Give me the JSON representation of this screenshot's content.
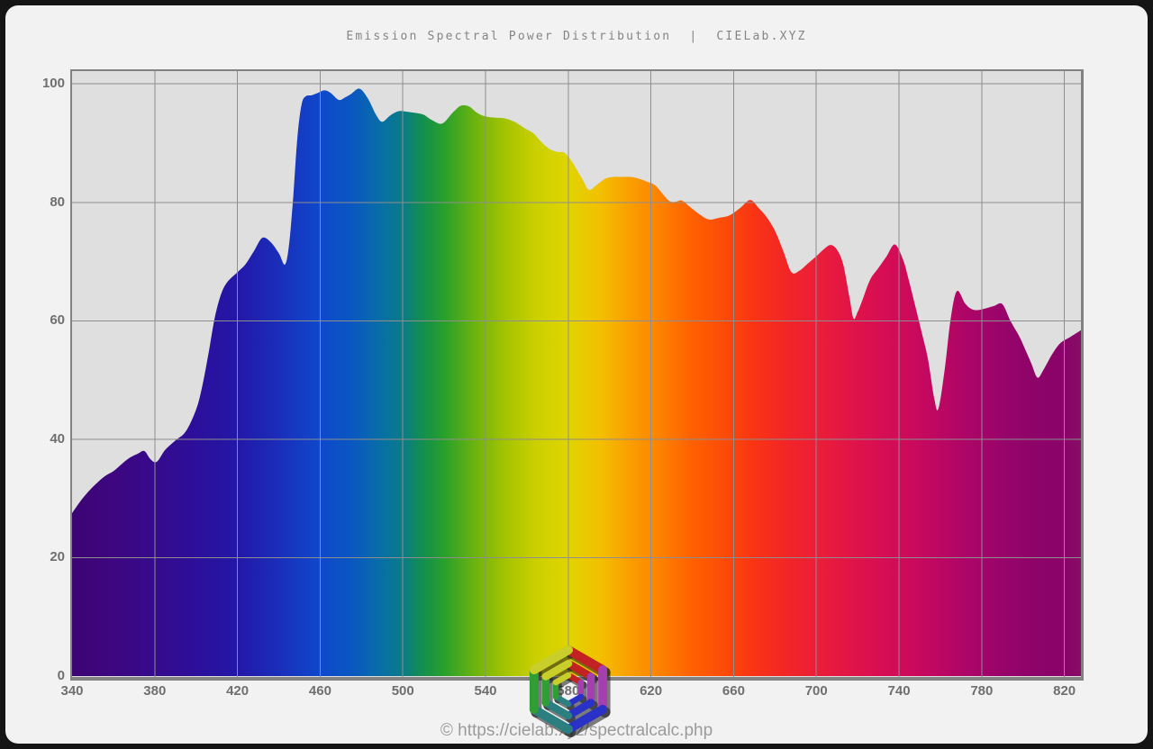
{
  "header": {
    "title": "Emission Spectral Power Distribution  |  CIELab.XYZ",
    "color": "#858585"
  },
  "footer": {
    "text": "© https://cielab.xyz/spectralcalc.php",
    "color": "#9b9b9b"
  },
  "logo": {
    "name": "cielab-hexagon-spiral-logo",
    "ring_radii": [
      44,
      29,
      16
    ],
    "ring_widths": [
      10,
      8.5,
      6.5
    ],
    "edge_colors": [
      "#c32222",
      "#a43fb0",
      "#2a31c6",
      "#2b7f80",
      "#2f9e35",
      "#c9cf2a"
    ],
    "shadow_color": "rgba(25,25,25,0.55)"
  },
  "chart_data": {
    "type": "area",
    "title": "Emission Spectral Power Distribution  |  CIELab.XYZ",
    "xlabel": "",
    "ylabel": "",
    "xlim": [
      340,
      828
    ],
    "ylim": [
      0,
      102.3
    ],
    "x_ticks": [
      340,
      380,
      420,
      460,
      500,
      540,
      580,
      620,
      660,
      700,
      740,
      780,
      820
    ],
    "y_ticks": [
      0,
      20,
      40,
      60,
      80,
      100
    ],
    "grid": true,
    "plot_bg": "#dfdfdf",
    "grid_color": "#8e8e8e",
    "border_color": "#828282",
    "tick_color": "#6f6f6f",
    "points": [
      [
        340,
        27.5
      ],
      [
        344,
        29.5
      ],
      [
        348,
        31.2
      ],
      [
        352,
        32.6
      ],
      [
        356,
        33.8
      ],
      [
        360,
        34.6
      ],
      [
        364,
        35.8
      ],
      [
        368,
        36.9
      ],
      [
        372,
        37.6
      ],
      [
        375,
        38
      ],
      [
        378,
        36.6
      ],
      [
        381,
        36.2
      ],
      [
        385,
        38.2
      ],
      [
        390,
        39.8
      ],
      [
        395,
        41.3
      ],
      [
        400,
        45
      ],
      [
        403,
        49
      ],
      [
        406,
        54.5
      ],
      [
        409,
        60.5
      ],
      [
        412,
        64.4
      ],
      [
        415,
        66.5
      ],
      [
        420,
        68.2
      ],
      [
        424,
        69.6
      ],
      [
        428,
        71.8
      ],
      [
        432,
        74
      ],
      [
        436,
        73.3
      ],
      [
        440,
        71.4
      ],
      [
        443,
        69.5
      ],
      [
        445,
        73
      ],
      [
        447,
        81
      ],
      [
        449,
        91
      ],
      [
        451,
        96.5
      ],
      [
        453,
        97.9
      ],
      [
        456,
        98.1
      ],
      [
        459,
        98.5
      ],
      [
        462,
        98.9
      ],
      [
        465,
        98.5
      ],
      [
        469,
        97.3
      ],
      [
        472,
        97.7
      ],
      [
        475,
        98.3
      ],
      [
        479,
        99.2
      ],
      [
        483,
        97.6
      ],
      [
        487,
        94.8
      ],
      [
        490,
        93.6
      ],
      [
        494,
        94.7
      ],
      [
        498,
        95.4
      ],
      [
        502,
        95.3
      ],
      [
        506,
        95.1
      ],
      [
        510,
        94.8
      ],
      [
        514,
        93.9
      ],
      [
        519,
        93.3
      ],
      [
        524,
        95.1
      ],
      [
        528,
        96.3
      ],
      [
        532,
        96.2
      ],
      [
        536,
        95.1
      ],
      [
        540,
        94.5
      ],
      [
        545,
        94.3
      ],
      [
        549,
        94.2
      ],
      [
        554,
        93.6
      ],
      [
        559,
        92.5
      ],
      [
        563,
        91.7
      ],
      [
        567,
        90.2
      ],
      [
        571,
        89
      ],
      [
        575,
        88.5
      ],
      [
        578,
        88.4
      ],
      [
        581,
        87.3
      ],
      [
        584,
        85.6
      ],
      [
        587,
        83.8
      ],
      [
        590,
        82.1
      ],
      [
        594,
        83
      ],
      [
        598,
        84
      ],
      [
        602,
        84.3
      ],
      [
        606,
        84.3
      ],
      [
        610,
        84.3
      ],
      [
        614,
        84
      ],
      [
        618,
        83.5
      ],
      [
        622,
        82.9
      ],
      [
        626,
        81.3
      ],
      [
        629,
        80.2
      ],
      [
        632,
        80.1
      ],
      [
        635,
        80.3
      ],
      [
        639,
        79.2
      ],
      [
        643,
        78.1
      ],
      [
        648,
        77.1
      ],
      [
        653,
        77.4
      ],
      [
        658,
        77.8
      ],
      [
        663,
        79
      ],
      [
        668,
        80.4
      ],
      [
        672,
        79.1
      ],
      [
        676,
        77.5
      ],
      [
        680,
        75.2
      ],
      [
        684,
        71.8
      ],
      [
        688,
        68.2
      ],
      [
        692,
        68.5
      ],
      [
        696,
        69.7
      ],
      [
        700,
        70.9
      ],
      [
        704,
        72.2
      ],
      [
        707,
        72.8
      ],
      [
        710,
        72
      ],
      [
        713,
        69.5
      ],
      [
        716,
        64
      ],
      [
        718,
        60.4
      ],
      [
        720,
        61.5
      ],
      [
        722,
        63.2
      ],
      [
        726,
        66.9
      ],
      [
        730,
        68.9
      ],
      [
        734,
        70.9
      ],
      [
        738,
        72.9
      ],
      [
        742,
        70.3
      ],
      [
        745,
        66.5
      ],
      [
        748,
        62.3
      ],
      [
        751,
        58
      ],
      [
        754,
        53.5
      ],
      [
        757,
        47
      ],
      [
        759,
        45.1
      ],
      [
        762,
        51.5
      ],
      [
        765,
        60.3
      ],
      [
        768,
        65
      ],
      [
        772,
        62.9
      ],
      [
        775,
        62
      ],
      [
        778,
        61.8
      ],
      [
        782,
        62.1
      ],
      [
        786,
        62.5
      ],
      [
        790,
        62.8
      ],
      [
        794,
        59.9
      ],
      [
        798,
        57.5
      ],
      [
        801,
        55.2
      ],
      [
        804,
        52.8
      ],
      [
        807,
        50.4
      ],
      [
        810,
        51.8
      ],
      [
        814,
        54.3
      ],
      [
        818,
        56.2
      ],
      [
        823,
        57.3
      ],
      [
        828,
        58.4
      ]
    ],
    "spectrum_gradient": [
      [
        340,
        "#3d0474"
      ],
      [
        360,
        "#3e0680"
      ],
      [
        380,
        "#360a8c"
      ],
      [
        400,
        "#2c0f9a"
      ],
      [
        420,
        "#2317a8"
      ],
      [
        440,
        "#1a2eba"
      ],
      [
        460,
        "#0f48cc"
      ],
      [
        475,
        "#0a56c2"
      ],
      [
        490,
        "#0870a4"
      ],
      [
        500,
        "#0a7b87"
      ],
      [
        510,
        "#14904c"
      ],
      [
        520,
        "#28a02a"
      ],
      [
        535,
        "#6cb40e"
      ],
      [
        550,
        "#a6c400"
      ],
      [
        565,
        "#ccd000"
      ],
      [
        580,
        "#e0d400"
      ],
      [
        595,
        "#f2c000"
      ],
      [
        610,
        "#fa9e00"
      ],
      [
        625,
        "#fd8000"
      ],
      [
        640,
        "#fe6000"
      ],
      [
        655,
        "#fc4c08"
      ],
      [
        670,
        "#f83414"
      ],
      [
        685,
        "#f22626"
      ],
      [
        700,
        "#ec1e38"
      ],
      [
        715,
        "#e21546"
      ],
      [
        730,
        "#d80e52"
      ],
      [
        745,
        "#cc0a5c"
      ],
      [
        760,
        "#bc0762"
      ],
      [
        775,
        "#aa0568"
      ],
      [
        790,
        "#98046a"
      ],
      [
        805,
        "#8e0369"
      ],
      [
        820,
        "#8a0368"
      ],
      [
        828,
        "#870e66"
      ]
    ]
  }
}
